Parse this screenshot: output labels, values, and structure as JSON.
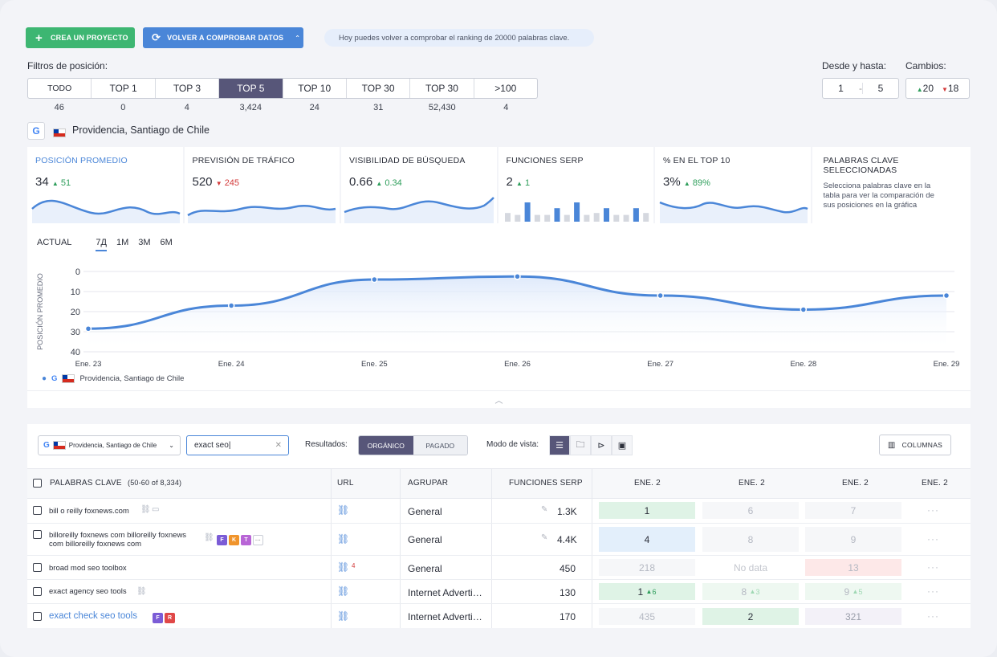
{
  "toolbar": {
    "create_project": "CREA UN PROYECTO",
    "recheck": "VOLVER A COMPROBAR DATOS",
    "info": "Hoy puedes volver a comprobar el ranking de 20000 palabras clave."
  },
  "filters": {
    "label": "Filtros de posición:",
    "tabs": [
      "TODO",
      "TOP 1",
      "TOP 3",
      "TOP 5",
      "TOP 10",
      "TOP 30",
      "TOP 30",
      ">100"
    ],
    "counts": [
      "46",
      "0",
      "4",
      "3,424",
      "24",
      "31",
      "52,430",
      "4"
    ],
    "active_index": 3
  },
  "range": {
    "label": "Desde y hasta:",
    "from": "1",
    "sep": "-",
    "to": "5"
  },
  "changes": {
    "label": "Cambios:",
    "up": "20",
    "down": "18",
    "up_icon": "▲",
    "down_icon": "▼"
  },
  "location": {
    "engine": "G",
    "name": "Providencia, Santiago de Chile"
  },
  "cards": [
    {
      "title": "POSICIÓN PROMEDIO",
      "value": "34",
      "delta": "51",
      "dir": "up",
      "arrow": "▲"
    },
    {
      "title": "PREVISIÓN DE TRÁFICO",
      "value": "520",
      "delta": "245",
      "dir": "down",
      "arrow": "▼"
    },
    {
      "title": "VISIBILIDAD DE BÚSQUEDA",
      "value": "0.66",
      "delta": "0.34",
      "dir": "up",
      "arrow": "▲"
    },
    {
      "title": "FUNCIONES SERP",
      "value": "2",
      "delta": "1",
      "dir": "up",
      "arrow": "▲"
    },
    {
      "title": "% EN EL TOP 10",
      "value": "3%",
      "delta": "89%",
      "dir": "up",
      "arrow": "▲"
    },
    {
      "title": "PALABRAS CLAVE SELECCIONADAS",
      "desc": "Selecciona palabras clave en la tabla para ver la comparación de sus posiciones en la gráfica"
    }
  ],
  "serp_bars": [
    0.45,
    0.35,
    1.0,
    0.35,
    0.35,
    0.7,
    0.35,
    1.0,
    0.35,
    0.45,
    0.7,
    0.35,
    0.35,
    0.7,
    0.45
  ],
  "periods": [
    "ACTUAL",
    "7Д",
    "1M",
    "3M",
    "6M"
  ],
  "chart_data": {
    "type": "line",
    "ylabel": "POSICIÓN PROMEDIO",
    "x": [
      "Ene. 23",
      "Ene. 24",
      "Ene. 25",
      "Ene. 26",
      "Ene. 27",
      "Ene. 28",
      "Ene. 29"
    ],
    "y_ticks": [
      "0",
      "10",
      "20",
      "30",
      "40"
    ],
    "ylim": [
      0,
      40
    ],
    "inverted": true,
    "series": [
      {
        "name": "Providencia, Santiago de Chile",
        "values": [
          28.5,
          17,
          4,
          2.5,
          12,
          19,
          12
        ],
        "color": "#4a86d8"
      }
    ],
    "grid": true,
    "legend": "bottom-left"
  },
  "table_controls": {
    "location": "Providencia, Santiago de Chile",
    "search_value": "exact seo",
    "results_label": "Resultados:",
    "organic": "ORGÁNICO",
    "paid": "PAGADO",
    "view_label": "Modo de vista:",
    "columns": "COLUMNAS"
  },
  "table": {
    "headers": {
      "keywords": "PALABRAS CLAVE",
      "range": "(50-60 of 8,334)",
      "url": "URL",
      "group": "AGRUPAR",
      "serp": "FUNCIONES SERP",
      "d1": "ENE. 2",
      "d2": "ENE. 2",
      "d3": "ENE. 2",
      "d4": "ENE. 2"
    },
    "rows": [
      {
        "kw": "bill o reilly foxnews.com",
        "url_badge": "",
        "group": "General",
        "serp": "1.3K",
        "p1": "1",
        "p2": "6",
        "p3": "7",
        "p1_up": "",
        "p2_up": "",
        "p3_up": ""
      },
      {
        "kw": "billoreilly foxnews com billoreilly foxnews com billoreilly foxnews com",
        "url_badge": "",
        "group": "General",
        "serp": "4.4K",
        "p1": "4",
        "p2": "8",
        "p3": "9",
        "p1_up": "",
        "p2_up": "",
        "p3_up": ""
      },
      {
        "kw": "broad mod seo toolbox",
        "url_badge": "4",
        "group": "General",
        "serp": "450",
        "p1": "218",
        "p2": "No data",
        "p3": "13",
        "p1_up": "",
        "p2_up": "",
        "p3_up": ""
      },
      {
        "kw": "exact agency seo tools",
        "url_badge": "",
        "group": "Internet Adverti…",
        "serp": "130",
        "p1": "1",
        "p2": "8",
        "p3": "9",
        "p1_up": "6",
        "p2_up": "3",
        "p3_up": "5"
      },
      {
        "kw": "exact check seo tools",
        "url_badge": "",
        "group": "Internet Adverti…",
        "serp": "170",
        "p1": "435",
        "p2": "2",
        "p3": "321",
        "p1_up": "",
        "p2_up": "",
        "p3_up": ""
      }
    ],
    "tags_row2": [
      "F",
      "K",
      "T"
    ],
    "tags_row5": [
      "F",
      "R"
    ],
    "more": "···"
  }
}
